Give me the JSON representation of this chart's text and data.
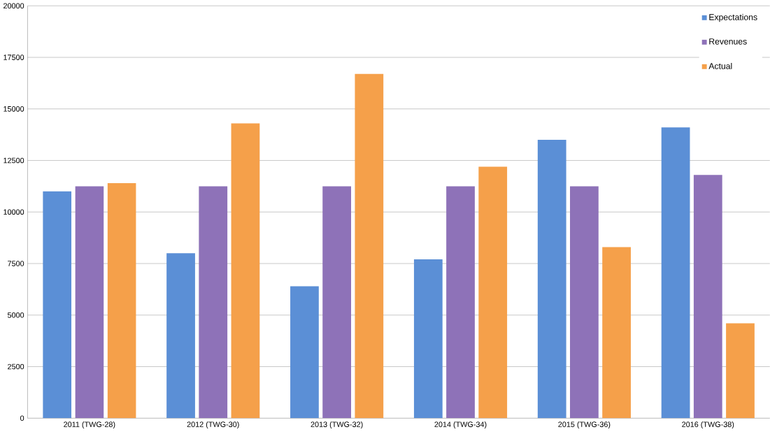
{
  "chart_data": {
    "type": "bar",
    "categories": [
      "2011 (TWG-28)",
      "2012 (TWG-30)",
      "2013 (TWG-32)",
      "2014 (TWG-34)",
      "2015 (TWG-36)",
      "2016 (TWG-38)"
    ],
    "series": [
      {
        "name": "Expectations",
        "color": "#5b8fd6",
        "values": [
          11000,
          8000,
          6400,
          7700,
          13500,
          14100
        ]
      },
      {
        "name": "Revenues",
        "color": "#8e72b8",
        "values": [
          11250,
          11250,
          11250,
          11250,
          11250,
          11800
        ]
      },
      {
        "name": "Actual",
        "color": "#f5a04a",
        "values": [
          11400,
          14300,
          16700,
          12200,
          8300,
          4600
        ]
      }
    ],
    "ylim": [
      0,
      20000
    ],
    "yticks": [
      0,
      2500,
      5000,
      7500,
      10000,
      12500,
      15000,
      17500,
      20000
    ],
    "grid": "y",
    "legend": "top right"
  }
}
